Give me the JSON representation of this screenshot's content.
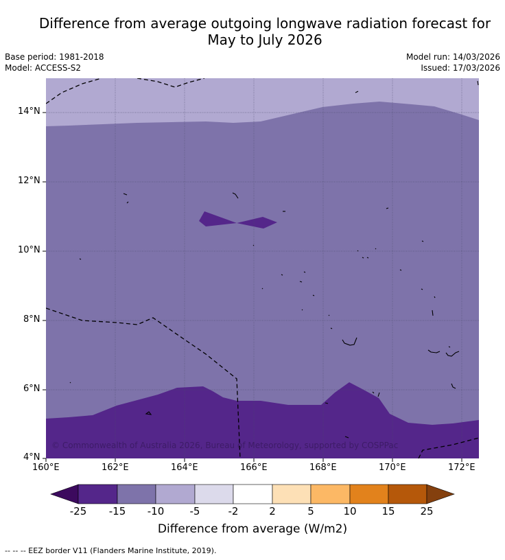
{
  "title": {
    "line1": "Difference from average outgoing longwave radiation forecast for",
    "line2": "May to July 2026"
  },
  "meta": {
    "base_period": "Base period: 1981-2018",
    "model": "Model: ACCESS-S2",
    "model_run": "Model run: 14/03/2026",
    "issued": "Issued: 17/03/2026"
  },
  "map": {
    "lon_range": [
      160,
      172.5
    ],
    "lat_range": [
      4,
      15
    ],
    "lat_ticks": [
      "14°N",
      "12°N",
      "10°N",
      "8°N",
      "6°N",
      "4°N"
    ],
    "lon_ticks": [
      "160°E",
      "162°E",
      "164°E",
      "166°E",
      "168°E",
      "170°E",
      "172°E"
    ],
    "copyright": "© Commonwealth of Australia 2026, Bureau of Meteorology, supported by COSPPac",
    "regions": [
      {
        "range": "-10 to -5",
        "color": "#b1a9d1"
      },
      {
        "range": "-15 to -10",
        "color": "#7e73aa"
      },
      {
        "range": "-25 to -15",
        "color": "#54268a"
      }
    ]
  },
  "colorbar": {
    "title": "Difference from average (W/m2)",
    "labels": [
      "-25",
      "-15",
      "-10",
      "-5",
      "-2",
      "2",
      "5",
      "10",
      "15",
      "25"
    ],
    "colors": [
      "#3c0a5e",
      "#54268a",
      "#7e73aa",
      "#b1a9d1",
      "#dcdaeb",
      "#ffffff",
      "#fde0b6",
      "#fcb865",
      "#e2821c",
      "#b5580a",
      "#84400e"
    ]
  },
  "legend_note": "--  --  -- EEZ border V11 (Flanders Marine Institute, 2019)."
}
